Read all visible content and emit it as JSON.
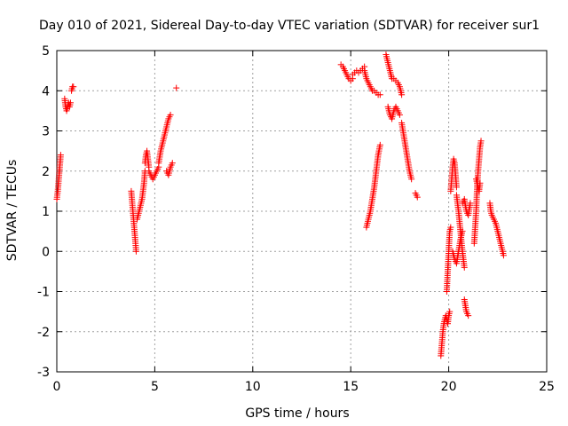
{
  "chart_data": {
    "type": "scatter",
    "title": "Day 010 of 2021, Sidereal Day-to-day VTEC variation (SDTVAR) for receiver sur1",
    "xlabel": "GPS time / hours",
    "ylabel": "SDTVAR / TECUs",
    "xlim": [
      0,
      25
    ],
    "ylim": [
      -3,
      5
    ],
    "xticks": [
      0,
      5,
      10,
      15,
      20,
      25
    ],
    "yticks": [
      -3,
      -2,
      -1,
      0,
      1,
      2,
      3,
      4,
      5
    ],
    "grid": true,
    "marker": "+",
    "color": "#ff0000",
    "segments": [
      {
        "x": [
          0.0,
          0.05,
          0.1,
          0.15,
          0.2
        ],
        "y": [
          1.3,
          1.5,
          1.8,
          2.1,
          2.4
        ]
      },
      {
        "x": [
          0.4,
          0.45,
          0.5,
          0.55,
          0.6,
          0.65,
          0.7
        ],
        "y": [
          3.8,
          3.6,
          3.5,
          3.6,
          3.7,
          3.6,
          3.7
        ]
      },
      {
        "x": [
          0.75,
          0.8,
          0.85
        ],
        "y": [
          4.0,
          4.1,
          4.1
        ]
      },
      {
        "x": [
          3.8,
          3.85,
          3.9,
          3.95,
          4.0,
          4.05
        ],
        "y": [
          1.5,
          1.2,
          0.9,
          0.6,
          0.3,
          0.0
        ]
      },
      {
        "x": [
          4.1,
          4.15,
          4.2,
          4.25,
          4.3,
          4.35,
          4.4,
          4.45,
          4.5
        ],
        "y": [
          0.8,
          0.9,
          1.0,
          1.1,
          1.2,
          1.3,
          1.5,
          1.7,
          2.0
        ]
      },
      {
        "x": [
          4.5,
          4.55,
          4.6,
          4.65,
          4.7
        ],
        "y": [
          2.2,
          2.4,
          2.5,
          2.3,
          2.1
        ]
      },
      {
        "x": [
          4.7,
          4.8,
          4.9,
          5.0,
          5.1,
          5.2
        ],
        "y": [
          2.0,
          1.9,
          1.8,
          1.9,
          2.0,
          2.1
        ]
      },
      {
        "x": [
          5.2,
          5.3,
          5.4,
          5.5,
          5.6,
          5.7,
          5.8
        ],
        "y": [
          2.2,
          2.5,
          2.7,
          2.9,
          3.1,
          3.3,
          3.4
        ]
      },
      {
        "x": [
          5.6,
          5.7,
          5.8,
          5.9
        ],
        "y": [
          2.0,
          1.9,
          2.1,
          2.2
        ]
      },
      {
        "x": [
          6.1
        ],
        "y": [
          4.07
        ]
      },
      {
        "x": [
          14.5,
          14.6,
          14.7,
          14.8,
          14.9,
          15.0,
          15.1
        ],
        "y": [
          4.65,
          4.6,
          4.5,
          4.4,
          4.3,
          4.25,
          4.3
        ]
      },
      {
        "x": [
          15.1,
          15.2,
          15.3,
          15.4,
          15.5,
          15.6,
          15.7
        ],
        "y": [
          4.4,
          4.45,
          4.5,
          4.45,
          4.5,
          4.55,
          4.6
        ]
      },
      {
        "x": [
          15.7,
          15.8,
          15.9,
          16.0,
          16.1,
          16.2,
          16.3,
          16.4,
          16.5
        ],
        "y": [
          4.5,
          4.3,
          4.2,
          4.1,
          4.0,
          4.0,
          3.95,
          3.9,
          3.9
        ]
      },
      {
        "x": [
          15.8,
          15.9,
          16.0,
          16.1,
          16.2,
          16.3,
          16.4,
          16.5
        ],
        "y": [
          0.6,
          0.8,
          1.0,
          1.3,
          1.6,
          2.0,
          2.4,
          2.65
        ]
      },
      {
        "x": [
          16.8,
          16.85,
          16.9,
          16.95,
          17.0,
          17.05,
          17.1
        ],
        "y": [
          4.9,
          4.8,
          4.7,
          4.6,
          4.5,
          4.4,
          4.3
        ]
      },
      {
        "x": [
          16.9,
          17.0,
          17.1,
          17.2,
          17.3,
          17.4,
          17.5
        ],
        "y": [
          3.6,
          3.4,
          3.3,
          3.5,
          3.6,
          3.5,
          3.4
        ]
      },
      {
        "x": [
          17.2,
          17.3,
          17.4,
          17.5,
          17.6
        ],
        "y": [
          4.3,
          4.25,
          4.2,
          4.1,
          3.9
        ]
      },
      {
        "x": [
          17.6,
          17.7,
          17.8,
          17.9,
          18.0,
          18.1
        ],
        "y": [
          3.2,
          2.9,
          2.6,
          2.3,
          2.0,
          1.8
        ]
      },
      {
        "x": [
          18.3,
          18.4
        ],
        "y": [
          1.45,
          1.35
        ]
      },
      {
        "x": [
          19.6,
          19.65,
          19.7,
          19.75,
          19.8,
          19.85,
          19.9,
          19.95,
          20.0,
          20.05
        ],
        "y": [
          -2.6,
          -2.3,
          -2.0,
          -1.8,
          -1.7,
          -1.6,
          -1.7,
          -1.8,
          -1.6,
          -1.5
        ]
      },
      {
        "x": [
          19.9,
          19.95,
          20.0,
          20.05,
          20.1
        ],
        "y": [
          -1.0,
          -0.5,
          0.0,
          0.5,
          0.6
        ]
      },
      {
        "x": [
          20.1,
          20.15,
          20.2,
          20.25,
          20.3,
          20.35,
          20.4
        ],
        "y": [
          1.5,
          1.8,
          2.1,
          2.3,
          2.2,
          1.9,
          1.6
        ]
      },
      {
        "x": [
          20.2,
          20.3,
          20.4,
          20.5,
          20.6,
          20.7
        ],
        "y": [
          0.0,
          -0.2,
          -0.3,
          0.0,
          0.3,
          0.5
        ]
      },
      {
        "x": [
          20.4,
          20.5,
          20.6,
          20.7,
          20.8
        ],
        "y": [
          1.4,
          1.0,
          0.5,
          0.0,
          -0.4
        ]
      },
      {
        "x": [
          20.7,
          20.8,
          20.9,
          21.0,
          21.1
        ],
        "y": [
          1.2,
          1.3,
          1.0,
          0.9,
          1.2
        ]
      },
      {
        "x": [
          20.8,
          20.9,
          21.0
        ],
        "y": [
          -1.2,
          -1.5,
          -1.6
        ]
      },
      {
        "x": [
          21.3,
          21.4,
          21.45,
          21.5,
          21.55,
          21.6,
          21.65
        ],
        "y": [
          0.2,
          1.0,
          1.6,
          2.0,
          2.3,
          2.6,
          2.75
        ]
      },
      {
        "x": [
          21.4,
          21.5,
          21.55,
          21.6
        ],
        "y": [
          1.8,
          1.6,
          1.5,
          1.7
        ]
      },
      {
        "x": [
          22.1,
          22.15,
          22.2,
          22.3,
          22.4,
          22.5,
          22.6,
          22.7,
          22.8
        ],
        "y": [
          1.2,
          1.0,
          0.9,
          0.8,
          0.7,
          0.5,
          0.3,
          0.1,
          -0.1
        ]
      }
    ]
  }
}
